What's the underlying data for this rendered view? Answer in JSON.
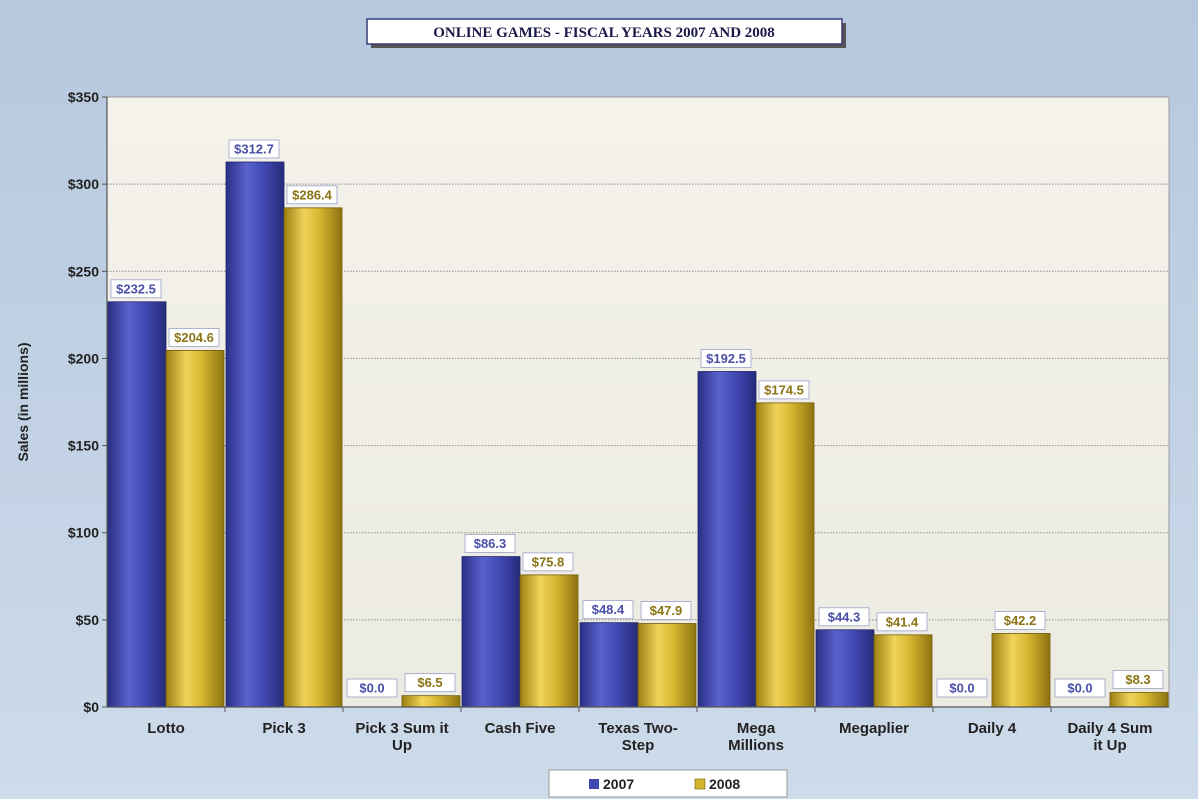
{
  "chart_data": {
    "type": "bar",
    "title": "ONLINE GAMES -  FISCAL YEARS 2007 AND 2008",
    "ylabel": "Sales (in millions)",
    "xlabel": "",
    "ylim": [
      0,
      350
    ],
    "yticks": [
      0,
      50,
      100,
      150,
      200,
      250,
      300,
      350
    ],
    "ytick_labels": [
      "$0",
      "$50",
      "$100",
      "$150",
      "$200",
      "$250",
      "$300",
      "$350"
    ],
    "categories": [
      [
        "Lotto"
      ],
      [
        "Pick 3"
      ],
      [
        "Pick 3 Sum it",
        "Up"
      ],
      [
        "Cash Five"
      ],
      [
        "Texas Two-",
        "Step"
      ],
      [
        "Mega",
        "Millions"
      ],
      [
        "Megaplier"
      ],
      [
        "Daily 4"
      ],
      [
        "Daily 4 Sum",
        "it Up"
      ]
    ],
    "series": [
      {
        "name": "2007",
        "color": "#3f48b0",
        "values": [
          232.5,
          312.7,
          0.0,
          86.3,
          48.4,
          192.5,
          44.3,
          0.0,
          0.0
        ],
        "labels": [
          "$232.5",
          "$312.7",
          "$0.0",
          "$86.3",
          "$48.4",
          "$192.5",
          "$44.3",
          "$0.0",
          "$0.0"
        ],
        "label_color": "#4a4fa8"
      },
      {
        "name": "2008",
        "color": "#d4b42a",
        "values": [
          204.6,
          286.4,
          6.5,
          75.8,
          47.9,
          174.5,
          41.4,
          42.2,
          8.3
        ],
        "labels": [
          "$204.6",
          "$286.4",
          "$6.5",
          "$75.8",
          "$47.9",
          "$174.5",
          "$41.4",
          "$42.2",
          "$8.3"
        ],
        "label_color": "#8a7414"
      }
    ],
    "grid": true,
    "legend_position": "bottom-center",
    "colors": {
      "outer_background": "#c3d3e6",
      "plot_background": "#f1efe6",
      "gridline": "#8d8d8d"
    }
  }
}
